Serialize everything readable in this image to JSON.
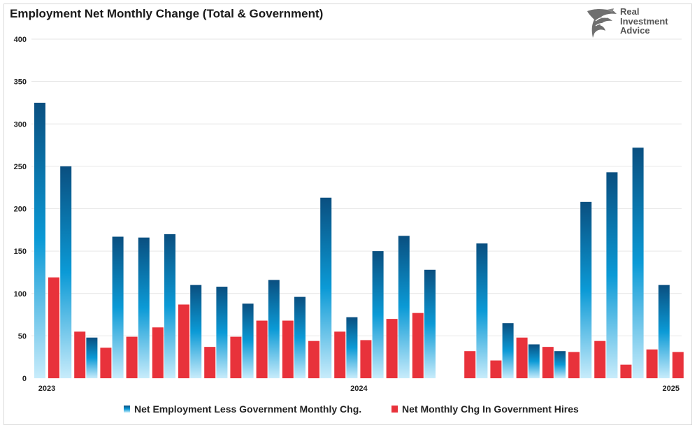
{
  "header": {
    "title": "Employment Net Monthly Change (Total & Government)"
  },
  "logo": {
    "icon": "eagle-icon",
    "lines": [
      "Real",
      "Investment",
      "Advice"
    ]
  },
  "colors": {
    "series1_dark": "#0a4f80",
    "series1_mid": "#0b9ad6",
    "series1_light": "#c8ecfb",
    "series2": "#e8323b",
    "grid": "#e6e6e6",
    "axis_text": "#222222"
  },
  "chart_data": {
    "type": "bar",
    "title": "Employment Net Monthly Change (Total & Government)",
    "xlabel": "",
    "ylabel": "",
    "ylim": [
      0,
      400
    ],
    "yticks": [
      0,
      50,
      100,
      150,
      200,
      250,
      300,
      350,
      400
    ],
    "grid": true,
    "legend_position": "bottom",
    "categories": [
      "2023-01",
      "2023-02",
      "2023-03",
      "2023-04",
      "2023-05",
      "2023-06",
      "2023-07",
      "2023-08",
      "2023-09",
      "2023-10",
      "2023-11",
      "2023-12",
      "2024-01",
      "2024-02",
      "2024-03",
      "2024-04",
      "2024-05",
      "2024-06",
      "2024-07",
      "2024-08",
      "2024-09",
      "2024-10",
      "2024-11",
      "2024-12",
      "2025-01"
    ],
    "xtick_labels": [
      {
        "category": "2023-01",
        "label": "2023"
      },
      {
        "category": "2024-01",
        "label": "2024"
      },
      {
        "category": "2025-01",
        "label": "2025"
      }
    ],
    "series": [
      {
        "name": "Net Employment Less Government Monthly Chg.",
        "values": [
          325,
          250,
          48,
          167,
          166,
          170,
          110,
          108,
          88,
          116,
          96,
          213,
          72,
          150,
          168,
          128,
          0,
          159,
          65,
          40,
          32,
          208,
          243,
          272,
          110
        ]
      },
      {
        "name": "Net Monthly Chg In Government Hires",
        "values": [
          119,
          55,
          36,
          49,
          60,
          87,
          37,
          49,
          68,
          68,
          44,
          55,
          45,
          70,
          77,
          0,
          32,
          21,
          48,
          37,
          31,
          44,
          16,
          34,
          31
        ]
      }
    ]
  }
}
